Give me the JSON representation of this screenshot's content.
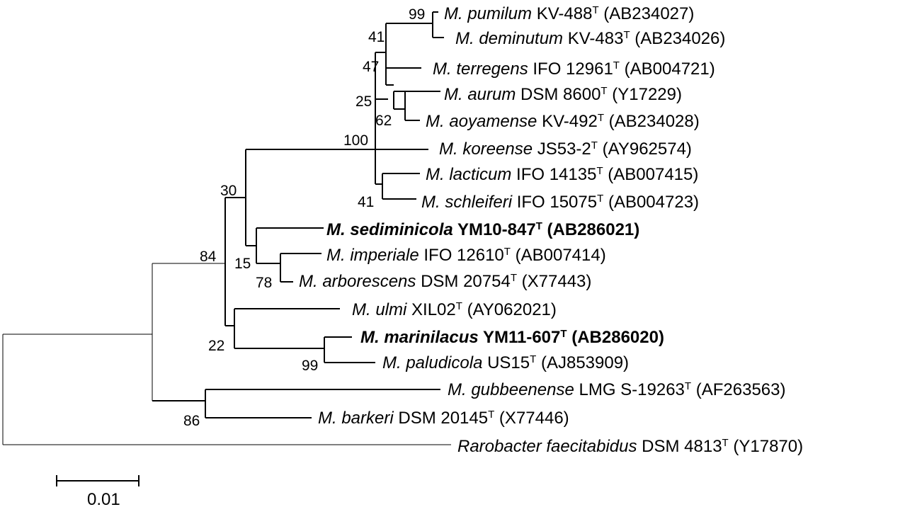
{
  "taxa": [
    {
      "genus": "M. pumilum",
      "strain": "KV-488",
      "sup": "T",
      "acc": "(AB234027)",
      "bold": false
    },
    {
      "genus": "M. deminutum",
      "strain": "KV-483",
      "sup": "T",
      "acc": "(AB234026)",
      "bold": false
    },
    {
      "genus": "M. terregens",
      "strain": "IFO 12961",
      "sup": "T",
      "acc": "(AB004721)",
      "bold": false
    },
    {
      "genus": "M. aurum",
      "strain": " DSM 8600",
      "sup": "T",
      "acc": "(Y17229)",
      "bold": false
    },
    {
      "genus": "M. aoyamense",
      "strain": "KV-492",
      "sup": "T",
      "acc": "(AB234028)",
      "bold": false
    },
    {
      "genus": "M. koreense",
      "strain": "JS53-2",
      "sup": "T",
      "acc": "(AY962574)",
      "bold": false
    },
    {
      "genus": "M. lacticum",
      "strain": "IFO 14135",
      "sup": "T",
      "acc": "(AB007415)",
      "bold": false
    },
    {
      "genus": "M. schleiferi",
      "strain": "IFO 15075",
      "sup": "T",
      "acc": "(AB004723)",
      "bold": false
    },
    {
      "genus": "M. sediminicola",
      "strain": "YM10-847",
      "sup": "T",
      "acc": "(AB286021)",
      "bold": true
    },
    {
      "genus": "M. imperiale",
      "strain": "IFO 12610",
      "sup": "T",
      "acc": "(AB007414)",
      "bold": false
    },
    {
      "genus": "M. arborescens",
      "strain": "DSM 20754",
      "sup": "T",
      "acc": "(X77443)",
      "bold": false
    },
    {
      "genus": "M. ulmi",
      "strain": "XIL02",
      "sup": "T",
      "acc": "(AY062021)",
      "bold": false
    },
    {
      "genus": "M. marinilacus",
      "strain": "YM11-607",
      "sup": "T",
      "acc": "(AB286020)",
      "bold": true
    },
    {
      "genus": "M. paludicola",
      "strain": "US15",
      "sup": "T",
      "acc": "(AJ853909)",
      "bold": false
    },
    {
      "genus": "M. gubbeenense",
      "strain": "LMG S-19263",
      "sup": "T",
      "acc": "(AF263563)",
      "bold": false
    },
    {
      "genus": "M. barkeri",
      "strain": "DSM 20145",
      "sup": "T",
      "acc": "(X77446)",
      "bold": false
    },
    {
      "genus": "Rarobacter faecitabidus",
      "strain": "DSM 4813",
      "sup": "T",
      "acc": "(Y17870)",
      "bold": false
    }
  ],
  "bootstrap": [
    "99",
    "41",
    "47",
    "25",
    "62",
    "100",
    "41",
    "30",
    "15",
    "78",
    "84",
    "22",
    "99",
    "86"
  ],
  "scale_bar": {
    "label": "0.01"
  }
}
